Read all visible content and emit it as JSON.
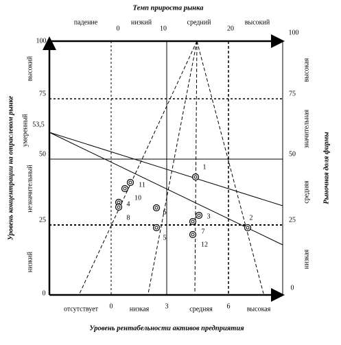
{
  "top_axis": {
    "title": "Темп прироста рынка",
    "labels": [
      "падение",
      "0",
      "низкий",
      "10",
      "средний",
      "20",
      "высокий"
    ]
  },
  "bottom_axis": {
    "title": "Уровень рентабельности активов предприятия",
    "labels": [
      "отсутствует",
      "0",
      "низкая",
      "3",
      "средняя",
      "6",
      "высокая"
    ]
  },
  "left_axis": {
    "title": "Уровень концентрации на отраслевом рынке",
    "ticks": [
      "100",
      "75",
      "53,5",
      "50",
      "25",
      "0"
    ],
    "levels": [
      "высокий",
      "умеренный",
      "незначительный",
      "низкий"
    ]
  },
  "right_axis": {
    "title": "Рыночная доля фирмы",
    "ticks": [
      "100",
      "75",
      "50",
      "25",
      "0"
    ],
    "levels": [
      "высокая",
      "значительная",
      "средняя",
      "низкая"
    ]
  },
  "points": [
    "1",
    "2",
    "3",
    "4",
    "5",
    "6",
    "7",
    "8",
    "10",
    "11",
    "12"
  ]
}
